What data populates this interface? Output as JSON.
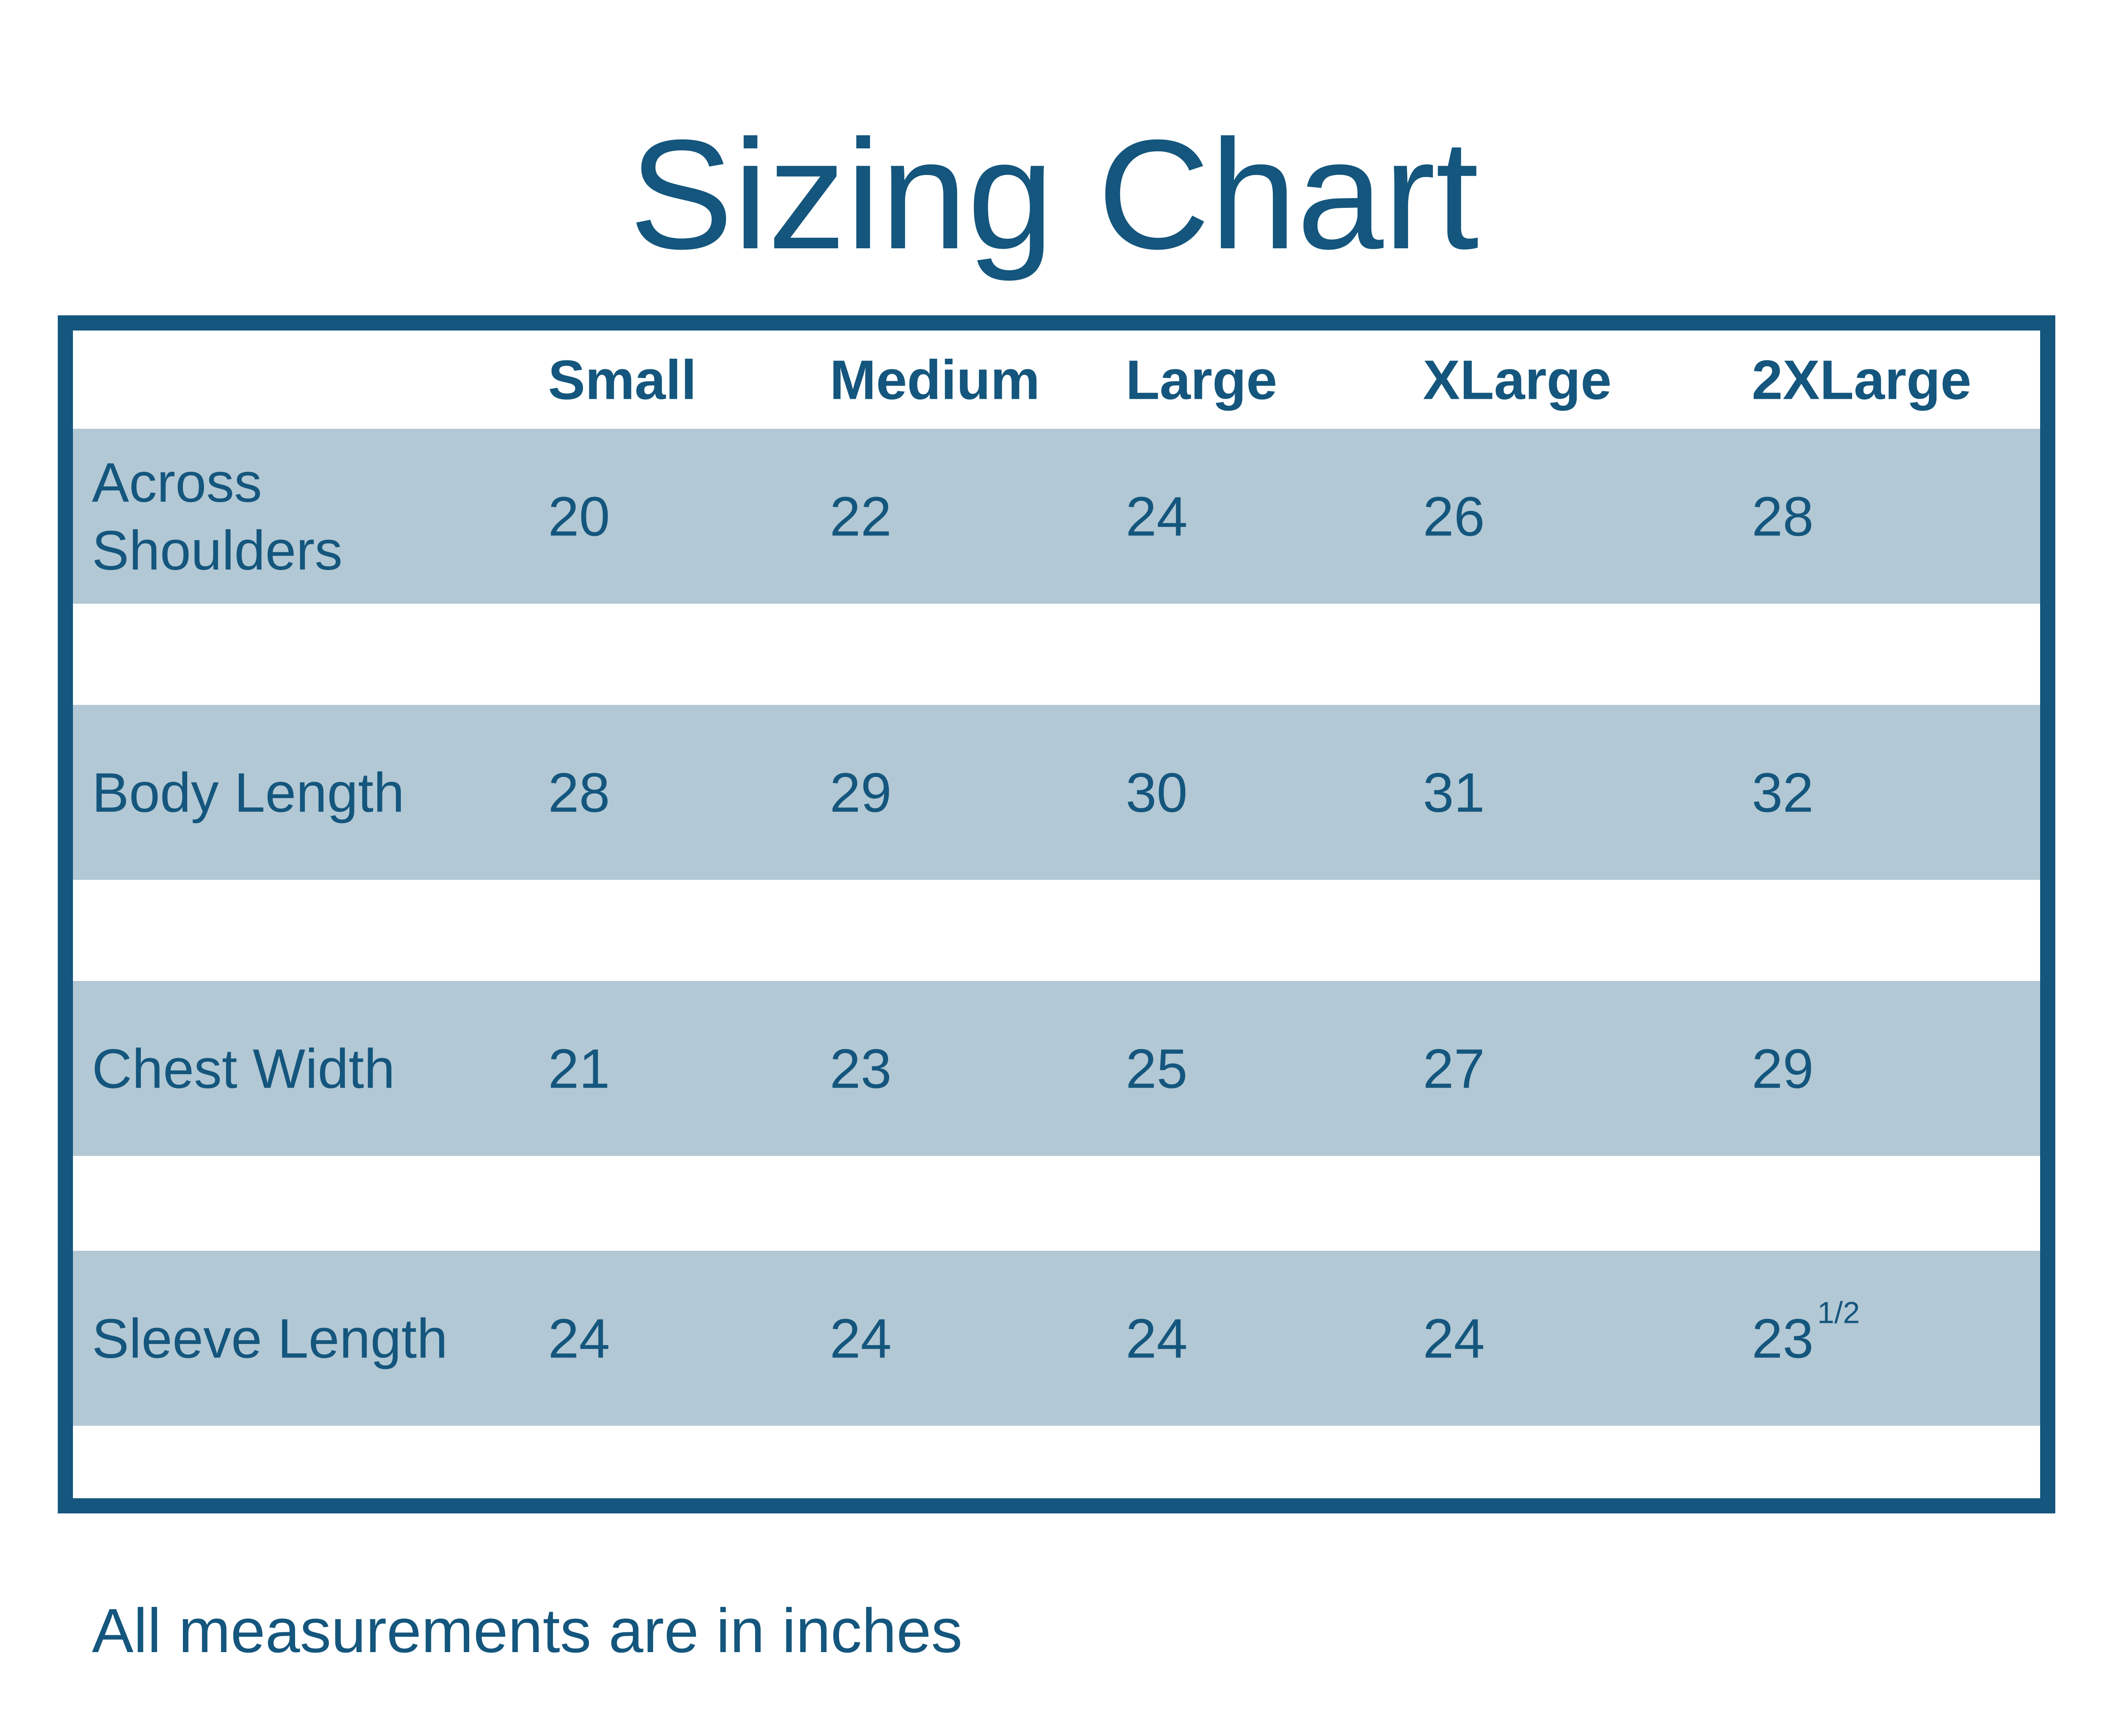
{
  "page": {
    "title": "Sizing Chart",
    "footnote": "All measurements are in inches"
  },
  "colors": {
    "accent": "#14567D",
    "band": "#B2C8D4",
    "background": "#FFFFFF"
  },
  "table": {
    "columns": [
      "Small",
      "Medium",
      "Large",
      "XLarge",
      "2XLarge"
    ],
    "rows": [
      {
        "label": "Across Shoulders",
        "values": [
          "20",
          "22",
          "24",
          "26",
          "28"
        ]
      },
      {
        "label": "Body Length",
        "values": [
          "28",
          "29",
          "30",
          "31",
          "32"
        ]
      },
      {
        "label": "Chest Width",
        "values": [
          "21",
          "23",
          "25",
          "27",
          "29"
        ]
      },
      {
        "label": "Sleeve Length",
        "values": [
          "24",
          "24",
          "24",
          "24",
          "23"
        ],
        "sup_fraction": "1/2"
      }
    ]
  },
  "chart_data": {
    "type": "table",
    "title": "Sizing Chart",
    "columns": [
      "",
      "Small",
      "Medium",
      "Large",
      "XLarge",
      "2XLarge"
    ],
    "rows": [
      [
        "Across Shoulders",
        20,
        22,
        24,
        26,
        28
      ],
      [
        "Body Length",
        28,
        29,
        30,
        31,
        32
      ],
      [
        "Chest Width",
        21,
        23,
        25,
        27,
        29
      ],
      [
        "Sleeve Length",
        24,
        24,
        24,
        24,
        "23 1/2"
      ]
    ],
    "note": "All measurements are in inches",
    "layout": {
      "striped_rows": true,
      "stripe_color": "#B2C8D4",
      "border_color": "#14567D",
      "header_position": "top"
    }
  }
}
